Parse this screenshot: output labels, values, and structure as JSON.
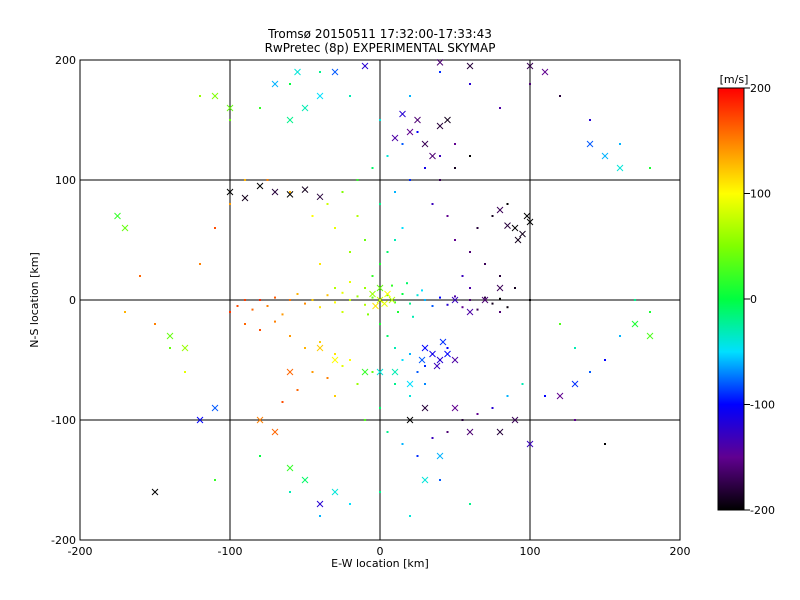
{
  "chart_data": {
    "type": "scatter",
    "title": "Tromsø 20150511 17:32:00-17:33:43",
    "subtitle": "RwPretec (8p) EXPERIMENTAL SKYMAP",
    "xlabel": "E-W location [km]",
    "ylabel": "N-S location [km]",
    "xlim": [
      -200,
      200
    ],
    "ylim": [
      -200,
      200
    ],
    "x_ticks": [
      "-200",
      "-100",
      "0",
      "100",
      "200"
    ],
    "y_ticks": [
      "-200",
      "-100",
      "0",
      "100",
      "200"
    ],
    "grid": true,
    "colorbar": {
      "label": "[m/s]",
      "range": [
        -200,
        200
      ],
      "ticks": [
        "200",
        "100",
        "0",
        "-100",
        "-200"
      ],
      "colormap": "rainbow (black-purple-blue-cyan-green-yellow-orange-red)"
    },
    "points_small": [
      [
        -100,
        -10,
        180
      ],
      [
        -95,
        -5,
        170
      ],
      [
        -90,
        0,
        175
      ],
      [
        -85,
        -8,
        160
      ],
      [
        -80,
        0,
        185
      ],
      [
        -75,
        -5,
        150
      ],
      [
        -70,
        2,
        165
      ],
      [
        -65,
        -12,
        140
      ],
      [
        -60,
        0,
        155
      ],
      [
        -55,
        5,
        130
      ],
      [
        -50,
        -3,
        145
      ],
      [
        -45,
        0,
        120
      ],
      [
        -40,
        -6,
        110
      ],
      [
        -35,
        4,
        125
      ],
      [
        -30,
        -2,
        100
      ],
      [
        -25,
        6,
        90
      ],
      [
        -20,
        0,
        80
      ],
      [
        -15,
        3,
        60
      ],
      [
        -10,
        -4,
        70
      ],
      [
        -5,
        2,
        40
      ],
      [
        0,
        0,
        50
      ],
      [
        5,
        4,
        30
      ],
      [
        10,
        -2,
        20
      ],
      [
        15,
        5,
        0
      ],
      [
        20,
        -3,
        -20
      ],
      [
        25,
        4,
        -40
      ],
      [
        30,
        0,
        -60
      ],
      [
        35,
        -5,
        -80
      ],
      [
        40,
        2,
        -100
      ],
      [
        45,
        -4,
        -120
      ],
      [
        50,
        3,
        -140
      ],
      [
        55,
        -6,
        -150
      ],
      [
        60,
        0,
        -160
      ],
      [
        65,
        -8,
        -170
      ],
      [
        70,
        2,
        -180
      ],
      [
        75,
        -3,
        -190
      ],
      [
        80,
        1,
        -200
      ],
      [
        85,
        -6,
        -195
      ],
      [
        -90,
        -20,
        160
      ],
      [
        -80,
        -25,
        170
      ],
      [
        -70,
        -18,
        150
      ],
      [
        -60,
        -30,
        140
      ],
      [
        -50,
        -40,
        130
      ],
      [
        -40,
        -35,
        120
      ],
      [
        -30,
        -45,
        110
      ],
      [
        -20,
        -50,
        100
      ],
      [
        -45,
        -60,
        140
      ],
      [
        -35,
        -65,
        150
      ],
      [
        -25,
        -55,
        90
      ],
      [
        -55,
        -75,
        160
      ],
      [
        -65,
        -85,
        170
      ],
      [
        -30,
        -80,
        120
      ],
      [
        -15,
        -70,
        60
      ],
      [
        -5,
        -60,
        40
      ],
      [
        0,
        -20,
        10
      ],
      [
        5,
        -30,
        -10
      ],
      [
        10,
        -40,
        -30
      ],
      [
        15,
        -50,
        -50
      ],
      [
        20,
        -45,
        -60
      ],
      [
        25,
        -60,
        -80
      ],
      [
        30,
        -55,
        -90
      ],
      [
        35,
        -45,
        -110
      ],
      [
        40,
        -50,
        -120
      ],
      [
        45,
        -40,
        -100
      ],
      [
        30,
        -70,
        -70
      ],
      [
        20,
        -80,
        -40
      ],
      [
        10,
        -70,
        -20
      ],
      [
        0,
        -90,
        -10
      ],
      [
        -10,
        -100,
        30
      ],
      [
        5,
        -110,
        -20
      ],
      [
        15,
        -120,
        -60
      ],
      [
        25,
        -130,
        -90
      ],
      [
        35,
        -115,
        -130
      ],
      [
        45,
        -110,
        -160
      ],
      [
        55,
        -100,
        -180
      ],
      [
        65,
        -95,
        -150
      ],
      [
        75,
        -90,
        -120
      ],
      [
        85,
        -80,
        -60
      ],
      [
        95,
        -70,
        -30
      ],
      [
        -5,
        20,
        20
      ],
      [
        0,
        30,
        10
      ],
      [
        5,
        40,
        -10
      ],
      [
        10,
        50,
        -30
      ],
      [
        15,
        60,
        -50
      ],
      [
        -10,
        50,
        40
      ],
      [
        -20,
        40,
        60
      ],
      [
        -30,
        60,
        90
      ],
      [
        -40,
        30,
        110
      ],
      [
        -15,
        70,
        70
      ],
      [
        0,
        80,
        -20
      ],
      [
        10,
        90,
        -60
      ],
      [
        20,
        100,
        -90
      ],
      [
        30,
        110,
        -110
      ],
      [
        40,
        120,
        -130
      ],
      [
        50,
        130,
        -150
      ],
      [
        25,
        140,
        -100
      ],
      [
        15,
        130,
        -80
      ],
      [
        5,
        120,
        -40
      ],
      [
        -5,
        110,
        -10
      ],
      [
        -15,
        100,
        20
      ],
      [
        -25,
        90,
        50
      ],
      [
        -35,
        80,
        80
      ],
      [
        -45,
        70,
        100
      ],
      [
        -60,
        90,
        130
      ],
      [
        -75,
        100,
        150
      ],
      [
        50,
        50,
        -150
      ],
      [
        60,
        40,
        -160
      ],
      [
        70,
        30,
        -170
      ],
      [
        80,
        20,
        -180
      ],
      [
        90,
        10,
        -190
      ],
      [
        100,
        0,
        -200
      ],
      [
        60,
        10,
        -140
      ],
      [
        70,
        0,
        -150
      ],
      [
        80,
        -10,
        -160
      ],
      [
        55,
        20,
        -130
      ],
      [
        65,
        60,
        -180
      ],
      [
        75,
        70,
        -190
      ],
      [
        85,
        80,
        -200
      ],
      [
        45,
        70,
        -150
      ],
      [
        35,
        80,
        -130
      ],
      [
        40,
        100,
        -170
      ],
      [
        50,
        110,
        -190
      ],
      [
        60,
        120,
        -200
      ],
      [
        -150,
        -20,
        150
      ],
      [
        -140,
        -40,
        40
      ],
      [
        -130,
        -60,
        90
      ],
      [
        -160,
        20,
        160
      ],
      [
        -170,
        -10,
        130
      ],
      [
        -120,
        30,
        150
      ],
      [
        -110,
        60,
        170
      ],
      [
        -100,
        80,
        140
      ],
      [
        -90,
        100,
        130
      ],
      [
        -120,
        -100,
        60
      ],
      [
        -110,
        -150,
        20
      ],
      [
        -80,
        -130,
        0
      ],
      [
        -60,
        -160,
        -30
      ],
      [
        -40,
        -180,
        -60
      ],
      [
        -20,
        -170,
        -50
      ],
      [
        0,
        -160,
        -20
      ],
      [
        20,
        -180,
        -40
      ],
      [
        40,
        -150,
        -80
      ],
      [
        60,
        -170,
        -20
      ],
      [
        -120,
        170,
        60
      ],
      [
        -100,
        150,
        40
      ],
      [
        -80,
        160,
        20
      ],
      [
        -60,
        180,
        0
      ],
      [
        -40,
        190,
        -20
      ],
      [
        -20,
        170,
        -30
      ],
      [
        0,
        150,
        -40
      ],
      [
        20,
        170,
        -60
      ],
      [
        40,
        190,
        -90
      ],
      [
        60,
        180,
        -120
      ],
      [
        80,
        160,
        -140
      ],
      [
        100,
        180,
        -160
      ],
      [
        120,
        170,
        -180
      ],
      [
        140,
        150,
        -120
      ],
      [
        160,
        130,
        -60
      ],
      [
        180,
        110,
        10
      ],
      [
        120,
        -20,
        30
      ],
      [
        130,
        -40,
        -30
      ],
      [
        140,
        -60,
        -80
      ],
      [
        150,
        -50,
        -100
      ],
      [
        160,
        -30,
        -60
      ],
      [
        170,
        0,
        -20
      ],
      [
        180,
        -10,
        10
      ],
      [
        110,
        -80,
        -100
      ],
      [
        130,
        -100,
        -150
      ],
      [
        150,
        -120,
        -200
      ],
      [
        -30,
        10,
        70
      ],
      [
        -25,
        -10,
        80
      ],
      [
        -20,
        15,
        90
      ],
      [
        -10,
        10,
        60
      ],
      [
        -8,
        -12,
        50
      ],
      [
        8,
        12,
        20
      ],
      [
        12,
        -10,
        10
      ],
      [
        18,
        14,
        -10
      ],
      [
        22,
        -14,
        -30
      ],
      [
        28,
        8,
        -50
      ]
    ],
    "points_cross": [
      [
        -100,
        90,
        -200
      ],
      [
        -90,
        85,
        -190
      ],
      [
        -80,
        95,
        -200
      ],
      [
        -70,
        90,
        -180
      ],
      [
        -60,
        88,
        -200
      ],
      [
        -50,
        92,
        -190
      ],
      [
        -40,
        86,
        -180
      ],
      [
        90,
        60,
        -200
      ],
      [
        95,
        55,
        -190
      ],
      [
        100,
        65,
        -200
      ],
      [
        85,
        62,
        -180
      ],
      [
        92,
        50,
        -190
      ],
      [
        98,
        70,
        -200
      ],
      [
        80,
        75,
        -170
      ],
      [
        20,
        140,
        -150
      ],
      [
        30,
        130,
        -170
      ],
      [
        25,
        150,
        -160
      ],
      [
        40,
        145,
        -180
      ],
      [
        10,
        135,
        -140
      ],
      [
        35,
        120,
        -160
      ],
      [
        45,
        150,
        -190
      ],
      [
        15,
        155,
        -120
      ],
      [
        30,
        -40,
        -100
      ],
      [
        35,
        -45,
        -110
      ],
      [
        40,
        -50,
        -120
      ],
      [
        45,
        -45,
        -100
      ],
      [
        38,
        -55,
        -130
      ],
      [
        42,
        -35,
        -90
      ],
      [
        50,
        -50,
        -140
      ],
      [
        28,
        -50,
        -80
      ],
      [
        0,
        0,
        80
      ],
      [
        5,
        5,
        100
      ],
      [
        -5,
        5,
        60
      ],
      [
        0,
        10,
        40
      ],
      [
        3,
        -3,
        90
      ],
      [
        -3,
        -5,
        110
      ],
      [
        8,
        0,
        70
      ],
      [
        -60,
        150,
        -20
      ],
      [
        -50,
        160,
        -30
      ],
      [
        -40,
        170,
        -50
      ],
      [
        -70,
        180,
        -60
      ],
      [
        -55,
        190,
        -40
      ],
      [
        -80,
        -100,
        150
      ],
      [
        -70,
        -110,
        160
      ],
      [
        -60,
        -140,
        20
      ],
      [
        -50,
        -150,
        -10
      ],
      [
        -30,
        -160,
        -40
      ],
      [
        -40,
        -170,
        -120
      ],
      [
        -130,
        -40,
        60
      ],
      [
        -140,
        -30,
        40
      ],
      [
        -120,
        -100,
        -100
      ],
      [
        -110,
        -90,
        -80
      ],
      [
        -150,
        -160,
        -200
      ],
      [
        -175,
        70,
        20
      ],
      [
        -170,
        60,
        40
      ],
      [
        170,
        -20,
        10
      ],
      [
        180,
        -30,
        30
      ],
      [
        130,
        -70,
        -90
      ],
      [
        120,
        -80,
        -150
      ],
      [
        80,
        -110,
        -180
      ],
      [
        90,
        -100,
        -170
      ],
      [
        100,
        -120,
        -130
      ],
      [
        20,
        -100,
        -200
      ],
      [
        30,
        -90,
        -180
      ],
      [
        50,
        -90,
        -150
      ],
      [
        60,
        -110,
        -160
      ],
      [
        40,
        -130,
        -60
      ],
      [
        30,
        -150,
        -40
      ],
      [
        110,
        190,
        -150
      ],
      [
        100,
        195,
        -170
      ],
      [
        60,
        195,
        -180
      ],
      [
        40,
        198,
        -160
      ],
      [
        -10,
        195,
        -120
      ],
      [
        -30,
        190,
        -80
      ],
      [
        -110,
        170,
        50
      ],
      [
        -100,
        160,
        40
      ],
      [
        140,
        130,
        -80
      ],
      [
        150,
        120,
        -60
      ],
      [
        160,
        110,
        -40
      ],
      [
        0,
        -60,
        -40
      ],
      [
        10,
        -60,
        -30
      ],
      [
        20,
        -70,
        -50
      ],
      [
        -10,
        -60,
        20
      ],
      [
        -30,
        -50,
        100
      ],
      [
        -40,
        -40,
        120
      ],
      [
        -60,
        -60,
        160
      ],
      [
        50,
        0,
        -130
      ],
      [
        60,
        -10,
        -140
      ],
      [
        70,
        0,
        -160
      ],
      [
        80,
        10,
        -170
      ]
    ]
  }
}
